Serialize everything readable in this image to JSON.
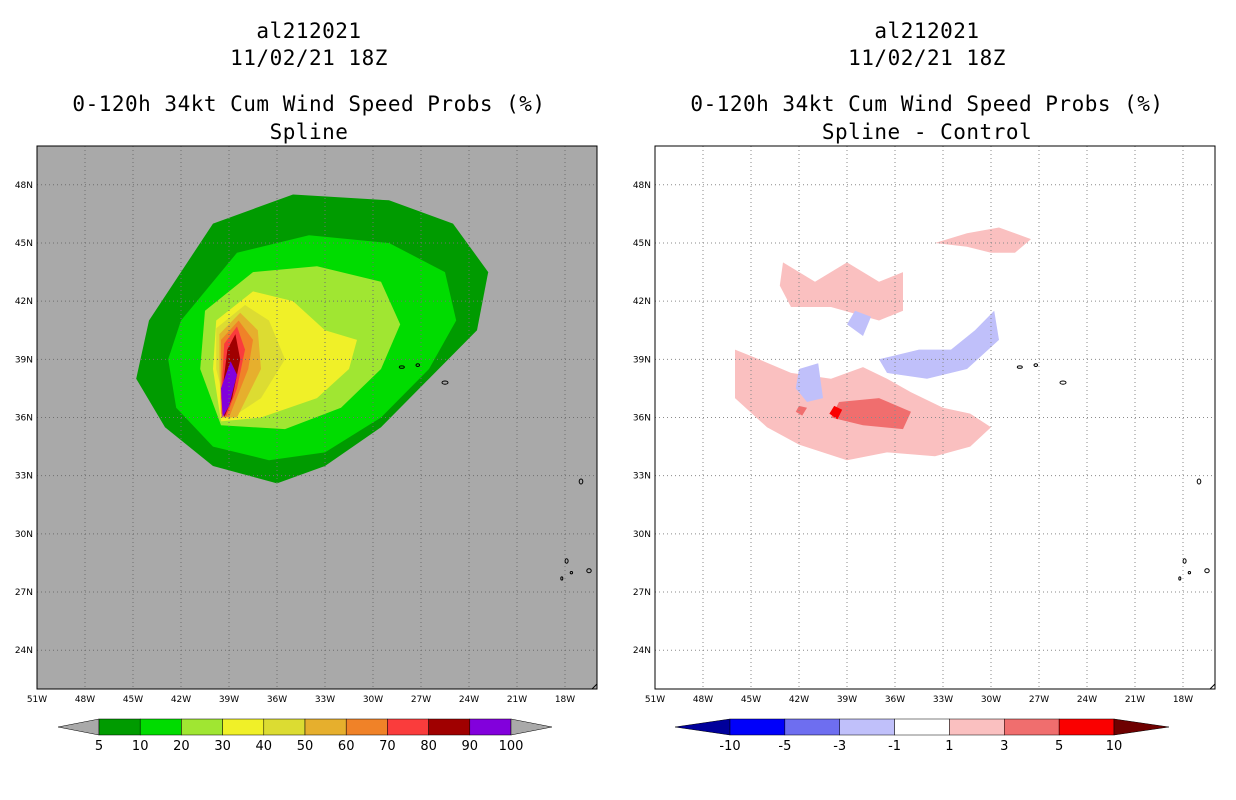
{
  "left": {
    "title_line1": "al212021",
    "title_line2": "11/02/21 18Z",
    "title_line3": "0-120h 34kt Cum Wind Speed Probs (%)",
    "title_line4": "Spline"
  },
  "right": {
    "title_line1": "al212021",
    "title_line2": "11/02/21 18Z",
    "title_line3": "0-120h 34kt Cum Wind Speed Probs (%)",
    "title_line4": "Spline - Control"
  },
  "colors": {
    "background_gray": "#a9a9a9",
    "prob": [
      "#009b00",
      "#00dc00",
      "#a0e632",
      "#f0f028",
      "#dcdc32",
      "#e6af2d",
      "#f08228",
      "#fa3c3c",
      "#a00000",
      "#8200dc"
    ],
    "diff": [
      "#00009b",
      "#0000fa",
      "#6e6ef0",
      "#c0c0fa",
      "#ffffff",
      "#fac0c0",
      "#f06e6e",
      "#fa0000",
      "#6e0000"
    ]
  },
  "chart_data": [
    {
      "type": "heatmap",
      "title": "al212021 11/02/21 18Z 0-120h 34kt Cum Wind Speed Probs (%) Spline",
      "xlim": [
        -51,
        -16
      ],
      "ylim": [
        22,
        50
      ],
      "x_ticks": [
        "51W",
        "48W",
        "45W",
        "42W",
        "39W",
        "36W",
        "33W",
        "30W",
        "27W",
        "24W",
        "21W",
        "18W"
      ],
      "y_ticks": [
        "24N",
        "27N",
        "30N",
        "33N",
        "36N",
        "39N",
        "42N",
        "45N",
        "48N"
      ],
      "colorbar_levels": [
        "5",
        "10",
        "20",
        "30",
        "40",
        "50",
        "60",
        "70",
        "80",
        "90",
        "100"
      ],
      "contours": [
        {
          "level": 5,
          "points": [
            [
              -44.0,
              41.0
            ],
            [
              -40.0,
              46.0
            ],
            [
              -35.0,
              47.5
            ],
            [
              -29.0,
              47.2
            ],
            [
              -25.0,
              46.0
            ],
            [
              -22.8,
              43.5
            ],
            [
              -23.5,
              40.5
            ],
            [
              -26.5,
              38.0
            ],
            [
              -29.5,
              35.5
            ],
            [
              -33.0,
              33.5
            ],
            [
              -36.0,
              32.6
            ],
            [
              -40.0,
              33.5
            ],
            [
              -43.0,
              35.5
            ],
            [
              -44.8,
              38.0
            ]
          ]
        },
        {
          "level": 10,
          "points": [
            [
              -42.0,
              41.0
            ],
            [
              -38.5,
              44.5
            ],
            [
              -34.0,
              45.4
            ],
            [
              -29.0,
              45.0
            ],
            [
              -25.5,
              43.5
            ],
            [
              -24.8,
              41.0
            ],
            [
              -26.5,
              38.5
            ],
            [
              -29.5,
              36.0
            ],
            [
              -33.0,
              34.2
            ],
            [
              -36.5,
              33.8
            ],
            [
              -40.0,
              34.5
            ],
            [
              -42.3,
              36.5
            ],
            [
              -42.8,
              39.0
            ]
          ]
        },
        {
          "level": 20,
          "points": [
            [
              -40.5,
              41.5
            ],
            [
              -37.5,
              43.5
            ],
            [
              -33.5,
              43.8
            ],
            [
              -29.5,
              43.0
            ],
            [
              -28.3,
              40.8
            ],
            [
              -29.5,
              38.5
            ],
            [
              -32.0,
              36.5
            ],
            [
              -35.5,
              35.4
            ],
            [
              -39.5,
              35.6
            ],
            [
              -40.8,
              38.5
            ]
          ]
        },
        {
          "level": 30,
          "points": [
            [
              -39.8,
              41.0
            ],
            [
              -37.5,
              42.5
            ],
            [
              -35.0,
              42.0
            ],
            [
              -33.0,
              40.5
            ],
            [
              -31.0,
              40.0
            ],
            [
              -31.5,
              38.5
            ],
            [
              -33.5,
              37.0
            ],
            [
              -37.0,
              36.0
            ],
            [
              -39.5,
              35.8
            ],
            [
              -40.0,
              38.5
            ]
          ]
        },
        {
          "level": 40,
          "points": [
            [
              -39.8,
              40.6
            ],
            [
              -38.0,
              41.8
            ],
            [
              -36.5,
              41.0
            ],
            [
              -35.5,
              39.0
            ],
            [
              -37.0,
              37.0
            ],
            [
              -39.0,
              35.9
            ],
            [
              -39.8,
              38.5
            ]
          ]
        },
        {
          "level": 50,
          "points": [
            [
              -39.6,
              40.3
            ],
            [
              -38.3,
              41.4
            ],
            [
              -37.2,
              40.5
            ],
            [
              -37.0,
              38.5
            ],
            [
              -38.5,
              36.0
            ],
            [
              -39.5,
              36.0
            ],
            [
              -39.6,
              38.5
            ]
          ]
        },
        {
          "level": 60,
          "points": [
            [
              -39.5,
              40.0
            ],
            [
              -38.4,
              41.0
            ],
            [
              -37.5,
              40.0
            ],
            [
              -37.8,
              38.5
            ],
            [
              -39.0,
              36.0
            ],
            [
              -39.5,
              36.2
            ],
            [
              -39.5,
              38.5
            ]
          ]
        },
        {
          "level": 70,
          "points": [
            [
              -39.3,
              39.8
            ],
            [
              -38.5,
              40.7
            ],
            [
              -38.0,
              39.5
            ],
            [
              -38.5,
              37.5
            ],
            [
              -39.2,
              36.0
            ],
            [
              -39.5,
              37.0
            ]
          ]
        },
        {
          "level": 80,
          "points": [
            [
              -39.1,
              39.5
            ],
            [
              -38.6,
              40.3
            ],
            [
              -38.3,
              39.0
            ],
            [
              -38.8,
              37.0
            ],
            [
              -39.3,
              36.0
            ],
            [
              -39.4,
              37.5
            ]
          ]
        },
        {
          "level": 90,
          "points": [
            [
              -38.9,
              38.9
            ],
            [
              -38.5,
              38.2
            ],
            [
              -39.0,
              36.6
            ],
            [
              -39.4,
              36.0
            ],
            [
              -39.5,
              37.5
            ]
          ]
        }
      ]
    },
    {
      "type": "heatmap",
      "title": "al212021 11/02/21 18Z 0-120h 34kt Cum Wind Speed Probs (%) Spline - Control",
      "xlim": [
        -51,
        -16
      ],
      "ylim": [
        22,
        50
      ],
      "x_ticks": [
        "51W",
        "48W",
        "45W",
        "42W",
        "39W",
        "36W",
        "33W",
        "30W",
        "27W",
        "24W",
        "21W",
        "18W"
      ],
      "y_ticks": [
        "24N",
        "27N",
        "30N",
        "33N",
        "36N",
        "39N",
        "42N",
        "45N",
        "48N"
      ],
      "colorbar_levels": [
        "-10",
        "-5",
        "-3",
        "-1",
        "1",
        "3",
        "5",
        "10"
      ],
      "positive_regions": [
        {
          "level": 1,
          "points": [
            [
              -43.0,
              44.0
            ],
            [
              -41.0,
              43.0
            ],
            [
              -39.0,
              44.0
            ],
            [
              -37.0,
              43.0
            ],
            [
              -35.5,
              43.5
            ],
            [
              -35.5,
              41.5
            ],
            [
              -37.0,
              41.0
            ],
            [
              -40.0,
              41.7
            ],
            [
              -42.5,
              41.7
            ],
            [
              -43.2,
              42.8
            ]
          ]
        },
        {
          "level": 1,
          "points": [
            [
              -46.0,
              39.5
            ],
            [
              -44.5,
              39.0
            ],
            [
              -42.5,
              38.3
            ],
            [
              -40.0,
              38.0
            ],
            [
              -38.0,
              38.6
            ],
            [
              -36.5,
              38.0
            ],
            [
              -35.0,
              37.3
            ],
            [
              -33.0,
              36.5
            ],
            [
              -31.3,
              36.2
            ],
            [
              -30.0,
              35.5
            ],
            [
              -31.3,
              34.5
            ],
            [
              -33.5,
              34.0
            ],
            [
              -36.5,
              34.2
            ],
            [
              -39.0,
              33.8
            ],
            [
              -42.0,
              34.6
            ],
            [
              -44.0,
              35.5
            ],
            [
              -46.0,
              37.0
            ]
          ]
        },
        {
          "level": 1,
          "points": [
            [
              -33.5,
              45.0
            ],
            [
              -31.5,
              45.5
            ],
            [
              -29.5,
              45.8
            ],
            [
              -27.5,
              45.2
            ],
            [
              -28.5,
              44.5
            ],
            [
              -30.0,
              44.5
            ],
            [
              -31.5,
              44.8
            ]
          ]
        },
        {
          "level": 3,
          "points": [
            [
              -39.5,
              36.8
            ],
            [
              -37.0,
              37.0
            ],
            [
              -35.0,
              36.3
            ],
            [
              -35.5,
              35.4
            ],
            [
              -38.0,
              35.6
            ],
            [
              -40.0,
              36.0
            ]
          ]
        },
        {
          "level": 3,
          "points": [
            [
              -42.0,
              36.6
            ],
            [
              -41.5,
              36.5
            ],
            [
              -41.8,
              36.1
            ],
            [
              -42.2,
              36.3
            ]
          ]
        },
        {
          "level": 5,
          "points": [
            [
              -39.8,
              36.6
            ],
            [
              -39.3,
              36.4
            ],
            [
              -39.6,
              35.9
            ],
            [
              -40.1,
              36.2
            ]
          ]
        }
      ],
      "negative_regions": [
        {
          "level": -1,
          "points": [
            [
              -38.5,
              41.5
            ],
            [
              -37.5,
              41.2
            ],
            [
              -38.0,
              40.2
            ],
            [
              -39.0,
              40.8
            ]
          ]
        },
        {
          "level": -1,
          "points": [
            [
              -37.0,
              39.0
            ],
            [
              -34.5,
              39.5
            ],
            [
              -32.5,
              39.5
            ],
            [
              -31.0,
              40.5
            ],
            [
              -29.8,
              41.5
            ],
            [
              -29.5,
              40.0
            ],
            [
              -31.5,
              38.5
            ],
            [
              -34.0,
              38.0
            ],
            [
              -36.5,
              38.3
            ]
          ]
        },
        {
          "level": -1,
          "points": [
            [
              -42.0,
              38.5
            ],
            [
              -40.8,
              38.8
            ],
            [
              -40.5,
              37.0
            ],
            [
              -41.5,
              36.8
            ],
            [
              -42.2,
              37.5
            ]
          ]
        }
      ]
    }
  ]
}
